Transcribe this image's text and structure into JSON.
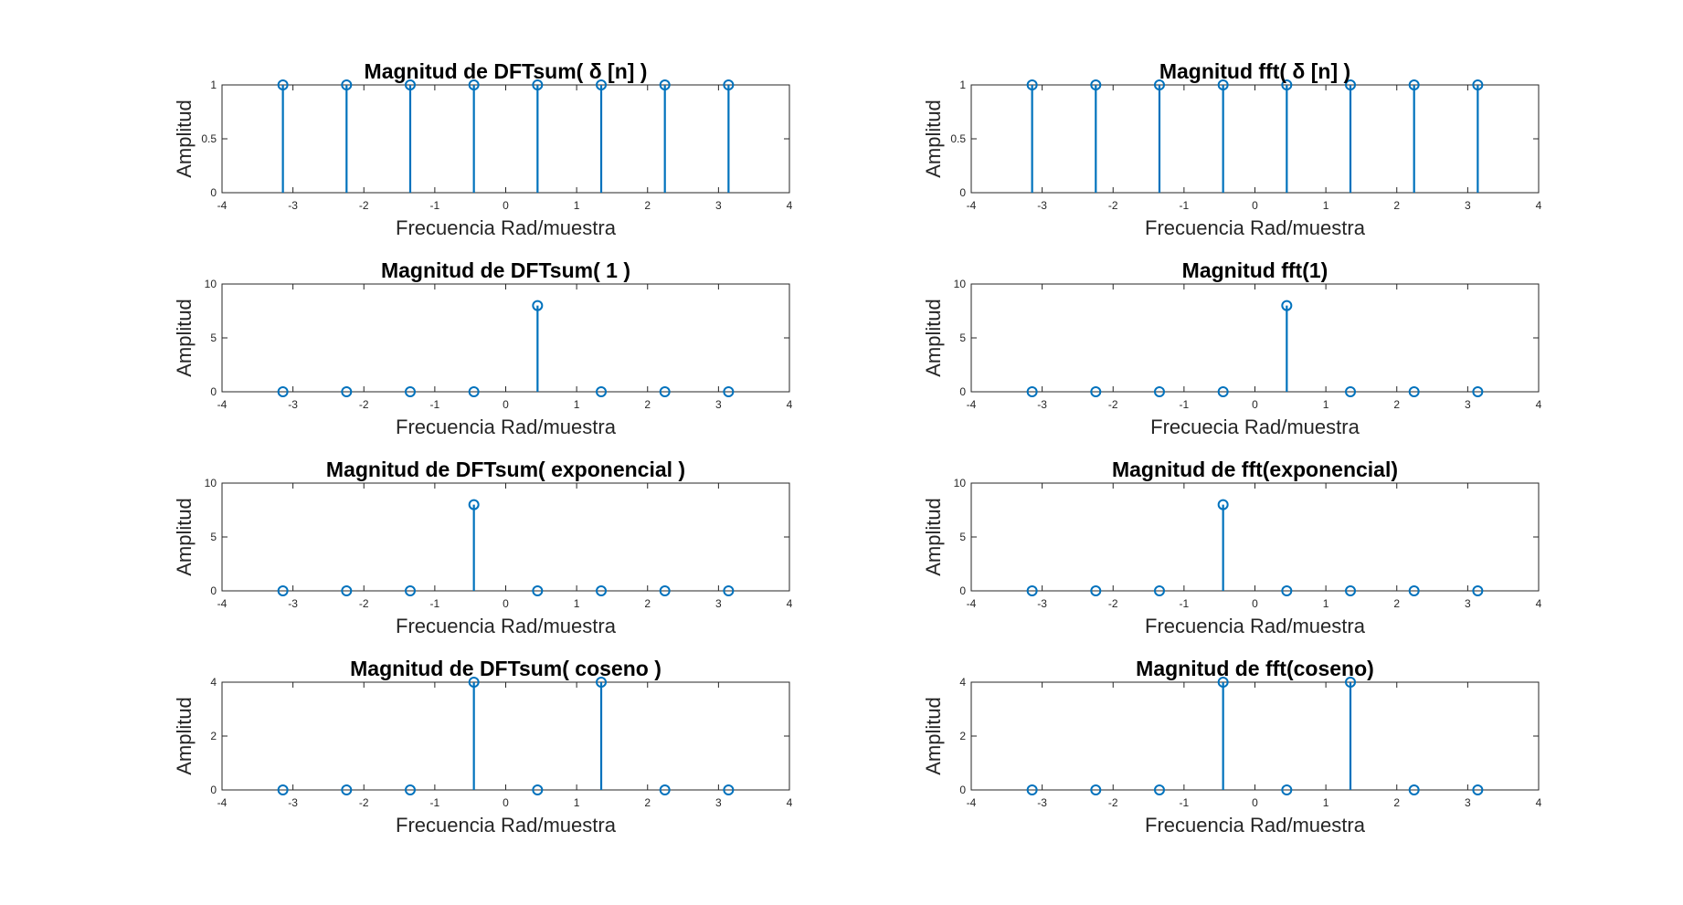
{
  "chart_data": [
    {
      "type": "stem",
      "title": "Magnitud de DFTsum( δ [n] )",
      "xlabel": "Frecuencia Rad/muestra",
      "ylabel": "Amplitud",
      "xlim": [
        -4,
        4
      ],
      "ylim": [
        0,
        1
      ],
      "xticks": [
        "-4",
        "-3",
        "-2",
        "-1",
        "0",
        "1",
        "2",
        "3",
        "4"
      ],
      "yticks": [
        "0",
        "0.5",
        "1"
      ],
      "x": [
        -3.1416,
        -2.244,
        -1.3464,
        -0.4488,
        0.4488,
        1.3464,
        2.244,
        3.1416
      ],
      "y": [
        1,
        1,
        1,
        1,
        1,
        1,
        1,
        1
      ],
      "color": "#0072BD"
    },
    {
      "type": "stem",
      "title": "Magnitud fft( δ [n] )",
      "xlabel": "Frecuencia Rad/muestra",
      "ylabel": "Amplitud",
      "xlim": [
        -4,
        4
      ],
      "ylim": [
        0,
        1
      ],
      "xticks": [
        "-4",
        "-3",
        "-2",
        "-1",
        "0",
        "1",
        "2",
        "3",
        "4"
      ],
      "yticks": [
        "0",
        "0.5",
        "1"
      ],
      "x": [
        -3.1416,
        -2.244,
        -1.3464,
        -0.4488,
        0.4488,
        1.3464,
        2.244,
        3.1416
      ],
      "y": [
        1,
        1,
        1,
        1,
        1,
        1,
        1,
        1
      ],
      "color": "#0072BD"
    },
    {
      "type": "stem",
      "title": "Magnitud de DFTsum( 1 )",
      "xlabel": "Frecuencia Rad/muestra",
      "ylabel": "Amplitud",
      "xlim": [
        -4,
        4
      ],
      "ylim": [
        0,
        10
      ],
      "xticks": [
        "-4",
        "-3",
        "-2",
        "-1",
        "0",
        "1",
        "2",
        "3",
        "4"
      ],
      "yticks": [
        "0",
        "5",
        "10"
      ],
      "x": [
        -3.1416,
        -2.244,
        -1.3464,
        -0.4488,
        0.4488,
        1.3464,
        2.244,
        3.1416
      ],
      "y": [
        0,
        0,
        0,
        0,
        8,
        0,
        0,
        0
      ],
      "color": "#0072BD"
    },
    {
      "type": "stem",
      "title": "Magnitud fft(1)",
      "xlabel": "Frecuecia Rad/muestra",
      "ylabel": "Amplitud",
      "xlim": [
        -4,
        4
      ],
      "ylim": [
        0,
        10
      ],
      "xticks": [
        "-4",
        "-3",
        "-2",
        "-1",
        "0",
        "1",
        "2",
        "3",
        "4"
      ],
      "yticks": [
        "0",
        "5",
        "10"
      ],
      "x": [
        -3.1416,
        -2.244,
        -1.3464,
        -0.4488,
        0.4488,
        1.3464,
        2.244,
        3.1416
      ],
      "y": [
        0,
        0,
        0,
        0,
        8,
        0,
        0,
        0
      ],
      "color": "#0072BD"
    },
    {
      "type": "stem",
      "title": "Magnitud de DFTsum( exponencial )",
      "xlabel": "Frecuencia Rad/muestra",
      "ylabel": "Amplitud",
      "xlim": [
        -4,
        4
      ],
      "ylim": [
        0,
        10
      ],
      "xticks": [
        "-4",
        "-3",
        "-2",
        "-1",
        "0",
        "1",
        "2",
        "3",
        "4"
      ],
      "yticks": [
        "0",
        "5",
        "10"
      ],
      "x": [
        -3.1416,
        -2.244,
        -1.3464,
        -0.4488,
        0.4488,
        1.3464,
        2.244,
        3.1416
      ],
      "y": [
        0,
        0,
        0,
        8,
        0,
        0,
        0,
        0
      ],
      "color": "#0072BD"
    },
    {
      "type": "stem",
      "title": "Magnitud de fft(exponencial)",
      "xlabel": "Frecuencia Rad/muestra",
      "ylabel": "Amplitud",
      "xlim": [
        -4,
        4
      ],
      "ylim": [
        0,
        10
      ],
      "xticks": [
        "-4",
        "-3",
        "-2",
        "-1",
        "0",
        "1",
        "2",
        "3",
        "4"
      ],
      "yticks": [
        "0",
        "5",
        "10"
      ],
      "x": [
        -3.1416,
        -2.244,
        -1.3464,
        -0.4488,
        0.4488,
        1.3464,
        2.244,
        3.1416
      ],
      "y": [
        0,
        0,
        0,
        8,
        0,
        0,
        0,
        0
      ],
      "color": "#0072BD"
    },
    {
      "type": "stem",
      "title": "Magnitud de DFTsum( coseno )",
      "xlabel": "Frecuencia Rad/muestra",
      "ylabel": "Amplitud",
      "xlim": [
        -4,
        4
      ],
      "ylim": [
        0,
        4
      ],
      "xticks": [
        "-4",
        "-3",
        "-2",
        "-1",
        "0",
        "1",
        "2",
        "3",
        "4"
      ],
      "yticks": [
        "0",
        "2",
        "4"
      ],
      "x": [
        -3.1416,
        -2.244,
        -1.3464,
        -0.4488,
        0.4488,
        1.3464,
        2.244,
        3.1416
      ],
      "y": [
        0,
        0,
        0,
        4,
        0,
        4,
        0,
        0
      ],
      "color": "#0072BD"
    },
    {
      "type": "stem",
      "title": "Magnitud de fft(coseno)",
      "xlabel": "Frecuencia Rad/muestra",
      "ylabel": "Amplitud",
      "xlim": [
        -4,
        4
      ],
      "ylim": [
        0,
        4
      ],
      "xticks": [
        "-4",
        "-3",
        "-2",
        "-1",
        "0",
        "1",
        "2",
        "3",
        "4"
      ],
      "yticks": [
        "0",
        "2",
        "4"
      ],
      "x": [
        -3.1416,
        -2.244,
        -1.3464,
        -0.4488,
        0.4488,
        1.3464,
        2.244,
        3.1416
      ],
      "y": [
        0,
        0,
        0,
        4,
        0,
        4,
        0,
        0
      ],
      "color": "#0072BD"
    }
  ]
}
